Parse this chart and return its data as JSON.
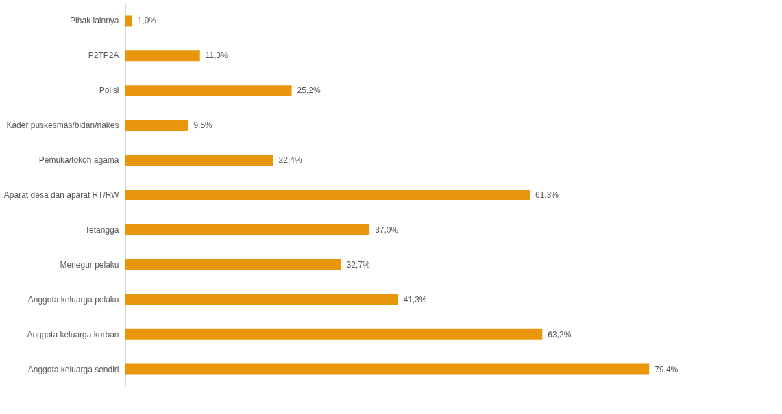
{
  "chart_data": {
    "type": "bar",
    "orientation": "horizontal",
    "categories": [
      "Pihak lainnya",
      "P2TP2A",
      "Polisi",
      "Kader puskesmas/bidan/nakes",
      "Pemuka/tokoh agama",
      "Aparat desa dan aparat RT/RW",
      "Tetangga",
      "Menegur pelaku",
      "Anggota keluarga pelaku",
      "Anggota keluarga korban",
      "Anggota keluarga sendiri"
    ],
    "values": [
      1.0,
      11.3,
      25.2,
      9.5,
      22.4,
      61.3,
      37.0,
      32.7,
      41.3,
      63.2,
      79.4
    ],
    "value_labels": [
      "1,0%",
      "11,3%",
      "25,2%",
      "9,5%",
      "22,4%",
      "61,3%",
      "37,0%",
      "32,7%",
      "41,3%",
      "63,2%",
      "79,4%"
    ],
    "color": "#e8960c",
    "tick_labels": "y",
    "grid": false
  }
}
